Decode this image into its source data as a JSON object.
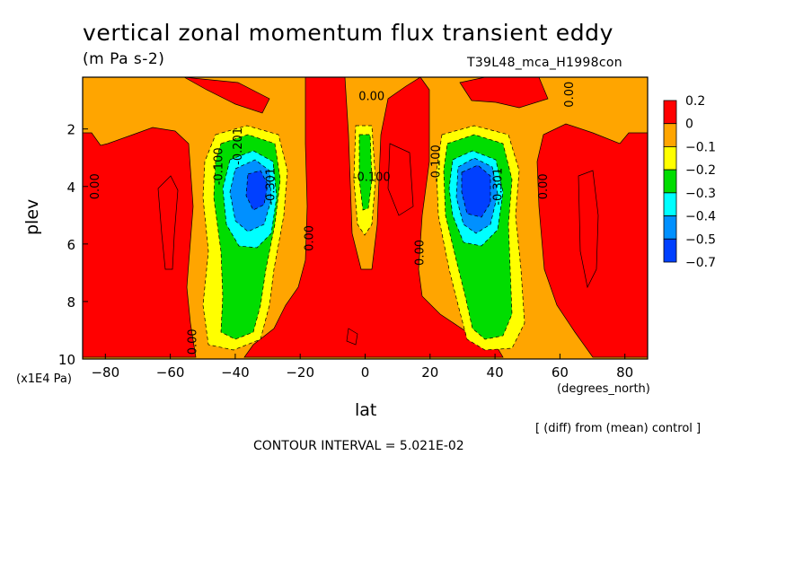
{
  "title": "vertical zonal momentum flux transient eddy",
  "units": "(m Pa s-2)",
  "run_name": "T39L48_mca_H1998con",
  "y_unit": "(x1E4 Pa)",
  "x_unit": "(degrees_north)",
  "diff_note": "[ (diff) from (mean) control ]",
  "contour_interval": "CONTOUR INTERVAL = 5.021E-02",
  "chart_data": {
    "type": "heatmap",
    "xlabel": "lat",
    "ylabel": "plev",
    "x_ticks": [
      -80,
      -60,
      -40,
      -20,
      0,
      20,
      40,
      60,
      80
    ],
    "x_tick_labels": [
      "−80",
      "−60",
      "−40",
      "−20",
      "0",
      "20",
      "40",
      "60",
      "80"
    ],
    "y_ticks": [
      2,
      4,
      6,
      8,
      10
    ],
    "y_tick_labels": [
      "2",
      "4",
      "6",
      "8",
      "10"
    ],
    "xlim": [
      -87,
      87
    ],
    "ylim": [
      10,
      0.2
    ],
    "colorbar": {
      "levels": [
        0.2,
        0,
        -0.1,
        -0.2,
        -0.3,
        -0.4,
        -0.5,
        -0.7
      ],
      "labels": [
        "0.2",
        "0",
        "−0.1",
        "−0.2",
        "−0.3",
        "−0.4",
        "−0.5",
        "−0.7"
      ],
      "colors": [
        "#ff0000",
        "#ffa500",
        "#ffff00",
        "#00dd00",
        "#00ffff",
        "#0090ff",
        "#0040ff"
      ]
    },
    "contour_labels": [
      {
        "text": "0.00",
        "lat": -82,
        "plev": 4
      },
      {
        "text": "0.00",
        "lat": -52,
        "plev": 9.4
      },
      {
        "text": "-0.100",
        "lat": -44,
        "plev": 3.3
      },
      {
        "text": "-0.201",
        "lat": -38,
        "plev": 2.6
      },
      {
        "text": "-0.301",
        "lat": -28,
        "plev": 4
      },
      {
        "text": "0.00",
        "lat": -16,
        "plev": 5.8
      },
      {
        "text": "0.00",
        "lat": 2,
        "plev": 1
      },
      {
        "text": "-0.100",
        "lat": 2,
        "plev": 3.8
      },
      {
        "text": "0.00",
        "lat": 18,
        "plev": 6.3
      },
      {
        "text": "-0.100",
        "lat": 23,
        "plev": 3.2
      },
      {
        "text": "-0.301",
        "lat": 42,
        "plev": 4
      },
      {
        "text": "0.00",
        "lat": 56,
        "plev": 4
      },
      {
        "text": "0.00",
        "lat": 64,
        "plev": 0.8
      }
    ]
  }
}
